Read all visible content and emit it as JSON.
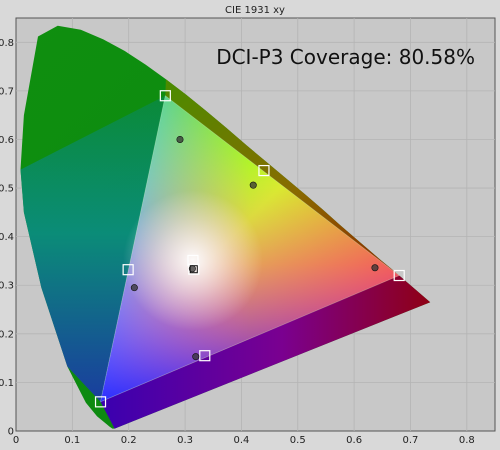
{
  "chart_data": {
    "type": "scatter",
    "title": "CIE 1931 xy",
    "annotation": "DCI-P3 Coverage: 80.58%",
    "xlim": [
      0,
      0.85
    ],
    "ylim": [
      0,
      0.85
    ],
    "x_ticks": [
      "0",
      "0.1",
      "0.2",
      "0.3",
      "0.4",
      "0.5",
      "0.6",
      "0.7",
      "0.8"
    ],
    "y_ticks": [
      "0",
      "0.1",
      "0.2",
      "0.3",
      "0.4",
      "0.5",
      "0.6",
      "0.7",
      "0.8"
    ],
    "grid": true,
    "spectral_locus": [
      [
        0.175,
        0.005
      ],
      [
        0.173,
        0.005
      ],
      [
        0.171,
        0.005
      ],
      [
        0.166,
        0.009
      ],
      [
        0.161,
        0.014
      ],
      [
        0.144,
        0.03
      ],
      [
        0.124,
        0.058
      ],
      [
        0.091,
        0.133
      ],
      [
        0.045,
        0.295
      ],
      [
        0.014,
        0.45
      ],
      [
        0.008,
        0.538
      ],
      [
        0.014,
        0.65
      ],
      [
        0.039,
        0.812
      ],
      [
        0.074,
        0.834
      ],
      [
        0.115,
        0.826
      ],
      [
        0.155,
        0.806
      ],
      [
        0.193,
        0.782
      ],
      [
        0.23,
        0.754
      ],
      [
        0.266,
        0.724
      ],
      [
        0.302,
        0.692
      ],
      [
        0.337,
        0.659
      ],
      [
        0.373,
        0.624
      ],
      [
        0.408,
        0.589
      ],
      [
        0.444,
        0.554
      ],
      [
        0.479,
        0.52
      ],
      [
        0.513,
        0.487
      ],
      [
        0.545,
        0.455
      ],
      [
        0.575,
        0.424
      ],
      [
        0.602,
        0.397
      ],
      [
        0.627,
        0.372
      ],
      [
        0.648,
        0.351
      ],
      [
        0.666,
        0.334
      ],
      [
        0.68,
        0.32
      ],
      [
        0.691,
        0.309
      ],
      [
        0.7,
        0.3
      ],
      [
        0.735,
        0.265
      ]
    ],
    "target_gamut": [
      [
        0.68,
        0.32
      ],
      [
        0.265,
        0.69
      ],
      [
        0.15,
        0.06
      ]
    ],
    "target_markers": [
      [
        0.68,
        0.32
      ],
      [
        0.265,
        0.69
      ],
      [
        0.15,
        0.06
      ],
      [
        0.314,
        0.351
      ],
      [
        0.44,
        0.536
      ],
      [
        0.199,
        0.332
      ],
      [
        0.335,
        0.155
      ],
      [
        0.3155,
        0.333
      ]
    ],
    "measured_points": [
      [
        0.637,
        0.336
      ],
      [
        0.291,
        0.6
      ],
      [
        0.421,
        0.506
      ],
      [
        0.21,
        0.295
      ],
      [
        0.319,
        0.153
      ],
      [
        0.313,
        0.334
      ]
    ],
    "colors": {
      "background": "#d9d9d9",
      "plot_background": "#c8c8c8",
      "locus_fill": "#119a11",
      "locus_edge_top": "#8a8c00",
      "locus_edge_bottom": "#a00034",
      "purple_base": "#5a00a8",
      "blue_corner": "#1f2bd1",
      "red_corner": "#990000",
      "marker": "#ffffff",
      "point": "#333333"
    }
  }
}
